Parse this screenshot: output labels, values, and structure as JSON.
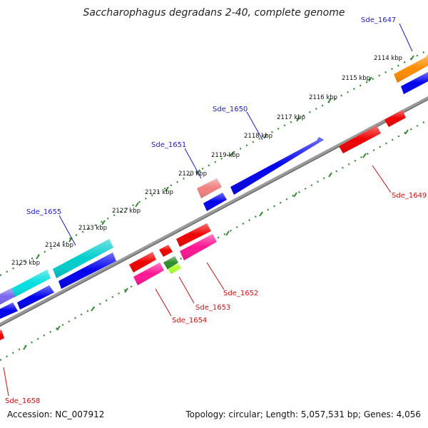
{
  "title": "Saccharophagus degradans 2-40, complete genome",
  "footer": {
    "accession": "Accession: NC_007912",
    "summary": "Topology: circular; Length: 5,057,531 bp; Genes: 4,056"
  },
  "scale_labels": [
    "2114 kbp",
    "2115 kbp",
    "2116 kbp",
    "2117 kbp",
    "2118 kbp",
    "2119 kbp",
    "2120 kbp",
    "2121 kbp",
    "2122 kbp",
    "2123 kbp",
    "2124 kbp",
    "2125 kbp"
  ],
  "gene_labels_top": [
    "Sde_1647",
    "Sde_1650",
    "Sde_1651",
    "Sde_1655"
  ],
  "gene_labels_bottom": [
    "Sde_1649",
    "Sde_1652",
    "Sde_1653",
    "Sde_1654",
    "Sde_1658"
  ],
  "colors": {
    "label_top": "#1a1acc",
    "label_bottom": "#cc1111",
    "backbone": "#808080",
    "dots": "#2e8b2e"
  }
}
